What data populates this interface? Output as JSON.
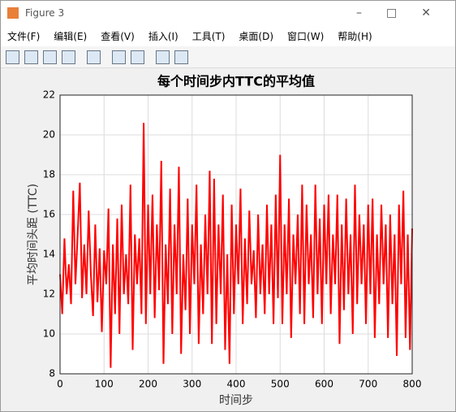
{
  "window": {
    "title": "Figure 3",
    "menu": [
      "文件(F)",
      "编辑(E)",
      "查看(V)",
      "插入(I)",
      "工具(T)",
      "桌面(D)",
      "窗口(W)",
      "帮助(H)"
    ]
  },
  "chart_data": {
    "type": "line",
    "title": "每个时间步内TTC的平均值",
    "x_label": "时间步",
    "y_label": "平均时间头距 (TTC)",
    "xlim": [
      0,
      800
    ],
    "xticks": [
      0,
      100,
      200,
      300,
      400,
      500,
      600,
      700,
      800
    ],
    "ylim": [
      8,
      22
    ],
    "yticks": [
      8,
      10,
      12,
      14,
      16,
      18,
      20,
      22
    ],
    "grid": true,
    "x": [
      0,
      5,
      10,
      15,
      20,
      25,
      30,
      35,
      40,
      45,
      50,
      55,
      60,
      65,
      70,
      75,
      80,
      85,
      90,
      95,
      100,
      105,
      110,
      115,
      120,
      125,
      130,
      135,
      140,
      145,
      150,
      155,
      160,
      165,
      170,
      175,
      180,
      185,
      190,
      195,
      200,
      205,
      210,
      215,
      220,
      225,
      230,
      235,
      240,
      245,
      250,
      255,
      260,
      265,
      270,
      275,
      280,
      285,
      290,
      295,
      300,
      305,
      310,
      315,
      320,
      325,
      330,
      335,
      340,
      345,
      350,
      355,
      360,
      365,
      370,
      375,
      380,
      385,
      390,
      395,
      400,
      405,
      410,
      415,
      420,
      425,
      430,
      435,
      440,
      445,
      450,
      455,
      460,
      465,
      470,
      475,
      480,
      485,
      490,
      495,
      500,
      505,
      510,
      515,
      520,
      525,
      530,
      535,
      540,
      545,
      550,
      555,
      560,
      565,
      570,
      575,
      580,
      585,
      590,
      595,
      600,
      605,
      610,
      615,
      620,
      625,
      630,
      635,
      640,
      645,
      650,
      655,
      660,
      665,
      670,
      675,
      680,
      685,
      690,
      695,
      700,
      705,
      710,
      715,
      720,
      725,
      730,
      735,
      740,
      745,
      750,
      755,
      760,
      765,
      770,
      775,
      780,
      785,
      790,
      795,
      800
    ],
    "series": [
      {
        "color": "#ff0000",
        "values": [
          13.0,
          11.0,
          14.8,
          12.0,
          13.5,
          11.5,
          17.2,
          12.5,
          15.0,
          17.6,
          11.8,
          14.5,
          12.0,
          16.2,
          13.0,
          10.9,
          15.5,
          11.6,
          14.3,
          10.1,
          14.2,
          12.5,
          16.3,
          8.3,
          14.5,
          11.0,
          15.8,
          10.0,
          16.5,
          12.0,
          14.0,
          11.5,
          17.5,
          9.2,
          15.0,
          12.5,
          14.8,
          11.0,
          20.6,
          10.5,
          16.5,
          12.0,
          17.0,
          10.8,
          15.5,
          12.2,
          18.7,
          8.5,
          14.5,
          11.5,
          17.3,
          10.0,
          15.5,
          12.0,
          18.4,
          9.0,
          14.0,
          11.2,
          16.8,
          10.0,
          15.5,
          12.5,
          17.5,
          9.5,
          14.5,
          11.0,
          16.0,
          12.0,
          18.2,
          9.5,
          17.8,
          10.5,
          15.5,
          12.0,
          17.0,
          9.2,
          14.0,
          8.5,
          16.5,
          11.0,
          15.5,
          12.5,
          17.3,
          10.5,
          14.8,
          11.5,
          16.2,
          12.5,
          14.2,
          10.8,
          16.0,
          12.0,
          14.5,
          11.0,
          16.5,
          12.0,
          15.5,
          10.5,
          17.0,
          11.8,
          19.0,
          10.5,
          15.5,
          12.0,
          16.8,
          9.8,
          15.0,
          12.5,
          16.0,
          11.0,
          17.5,
          10.5,
          16.5,
          12.5,
          15.0,
          10.8,
          17.5,
          12.0,
          15.8,
          10.5,
          16.5,
          12.5,
          17.0,
          11.0,
          15.0,
          12.5,
          17.0,
          9.5,
          15.5,
          11.2,
          16.8,
          12.0,
          15.0,
          10.0,
          17.5,
          11.5,
          16.0,
          12.5,
          15.5,
          10.5,
          16.5,
          12.0,
          16.8,
          9.8,
          15.0,
          11.5,
          16.5,
          12.5,
          15.5,
          9.8,
          16.0,
          11.5,
          15.0,
          8.9,
          16.5,
          12.5,
          17.2,
          9.8,
          15.0,
          9.2,
          15.3
        ]
      }
    ]
  }
}
